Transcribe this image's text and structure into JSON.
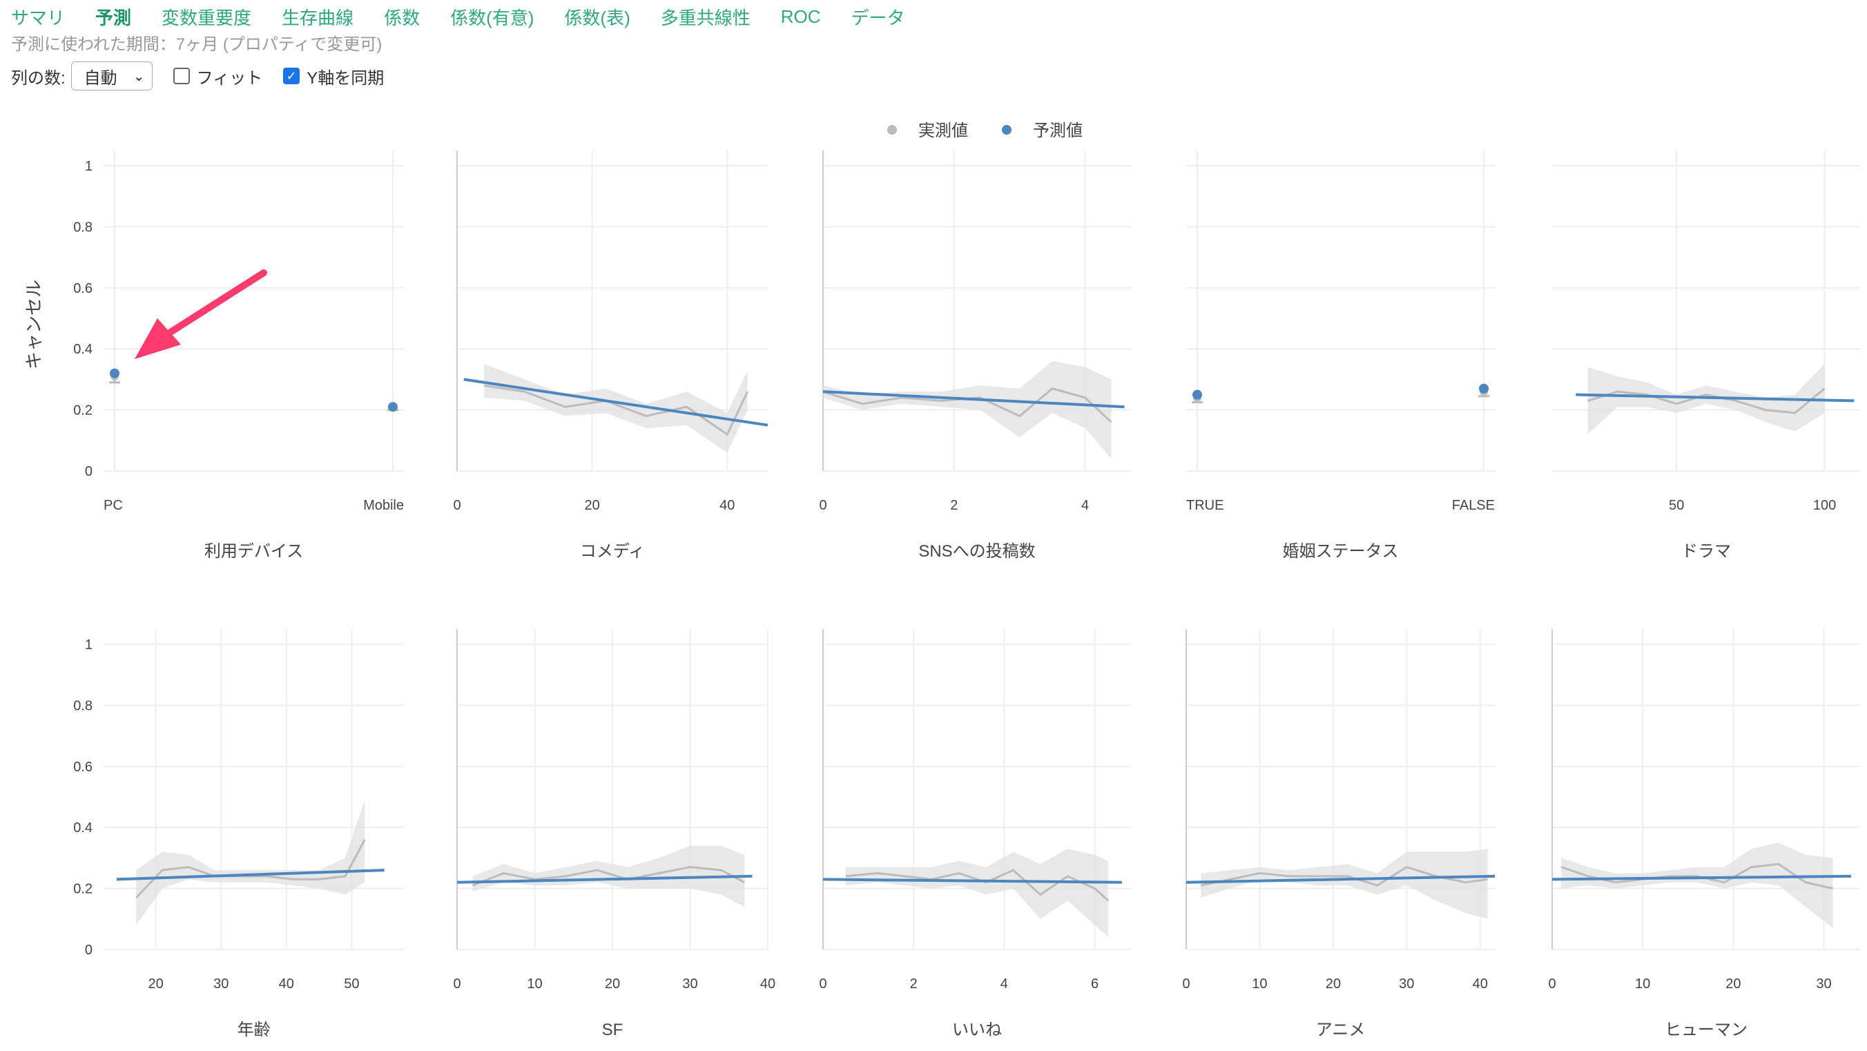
{
  "tabs": [
    {
      "label": "サマリ",
      "active": false
    },
    {
      "label": "予測",
      "active": true
    },
    {
      "label": "変数重要度",
      "active": false
    },
    {
      "label": "生存曲線",
      "active": false
    },
    {
      "label": "係数",
      "active": false
    },
    {
      "label": "係数(有意)",
      "active": false
    },
    {
      "label": "係数(表)",
      "active": false
    },
    {
      "label": "多重共線性",
      "active": false
    },
    {
      "label": "ROC",
      "active": false
    },
    {
      "label": "データ",
      "active": false
    }
  ],
  "period_text": "予測に使われた期間：7ヶ月 (プロパティで変更可)",
  "controls": {
    "columns_label": "列の数:",
    "columns_value": "自動",
    "fit_label": "フィット",
    "fit_checked": false,
    "sync_y_label": "Y軸を同期",
    "sync_y_checked": true
  },
  "colors": {
    "actual": "#bbbbbb",
    "predicted": "#4a86c0",
    "band": "#e0e0e0",
    "tab": "#2eaa7a",
    "annotation_arrow": "#ff3b6e"
  },
  "chart_data": {
    "type": "line",
    "ylabel": "キャンセル",
    "ylim": [
      0,
      1.05
    ],
    "yticks": [
      0,
      0.2,
      0.4,
      0.6,
      0.8,
      1
    ],
    "legend": {
      "placement": "top-center",
      "actual": "実測値",
      "predicted": "予測値"
    },
    "annotation": {
      "type": "arrow",
      "target": "利用デバイス PC"
    },
    "panels": [
      {
        "title": "利用デバイス",
        "kind": "categorical",
        "categories": [
          "PC",
          "Mobile"
        ],
        "predicted": [
          0.32,
          0.21
        ],
        "actual": [
          0.31,
          0.21
        ],
        "actual_err": [
          0.02,
          0.01
        ]
      },
      {
        "title": "コメディ",
        "kind": "numeric",
        "xlim": [
          0,
          46
        ],
        "xticks": [
          0,
          20,
          40
        ],
        "predicted_x": [
          1,
          46
        ],
        "predicted_y": [
          0.3,
          0.15
        ],
        "actual_x": [
          4,
          10,
          16,
          22,
          28,
          34,
          40,
          43
        ],
        "actual_y": [
          0.28,
          0.26,
          0.21,
          0.23,
          0.18,
          0.21,
          0.12,
          0.26
        ],
        "band_low": [
          0.24,
          0.23,
          0.18,
          0.19,
          0.14,
          0.15,
          0.06,
          0.2
        ],
        "band_high": [
          0.35,
          0.3,
          0.25,
          0.27,
          0.22,
          0.26,
          0.19,
          0.33
        ]
      },
      {
        "title": "SNSへの投稿数",
        "kind": "numeric",
        "xlim": [
          0,
          4.7
        ],
        "xticks": [
          0,
          2,
          4
        ],
        "predicted_x": [
          0,
          4.6
        ],
        "predicted_y": [
          0.26,
          0.21
        ],
        "actual_x": [
          0,
          0.6,
          1.2,
          1.8,
          2.4,
          3.0,
          3.5,
          4.0,
          4.4
        ],
        "actual_y": [
          0.26,
          0.22,
          0.24,
          0.23,
          0.24,
          0.18,
          0.27,
          0.24,
          0.16
        ],
        "band_low": [
          0.24,
          0.2,
          0.22,
          0.21,
          0.2,
          0.11,
          0.19,
          0.14,
          0.04
        ],
        "band_high": [
          0.28,
          0.25,
          0.26,
          0.26,
          0.28,
          0.27,
          0.36,
          0.34,
          0.3
        ]
      },
      {
        "title": "婚姻ステータス",
        "kind": "categorical",
        "categories": [
          "TRUE",
          "FALSE"
        ],
        "predicted": [
          0.25,
          0.27
        ],
        "actual": [
          0.24,
          0.26
        ],
        "actual_err": [
          0.015,
          0.015
        ]
      },
      {
        "title": "ドラマ",
        "kind": "numeric",
        "xlim": [
          8,
          112
        ],
        "xticks": [
          50,
          100
        ],
        "predicted_x": [
          16,
          110
        ],
        "predicted_y": [
          0.25,
          0.23
        ],
        "actual_x": [
          20,
          30,
          40,
          50,
          60,
          70,
          80,
          90,
          100
        ],
        "actual_y": [
          0.23,
          0.26,
          0.25,
          0.22,
          0.25,
          0.23,
          0.2,
          0.19,
          0.27
        ],
        "band_low": [
          0.12,
          0.21,
          0.21,
          0.19,
          0.22,
          0.2,
          0.16,
          0.13,
          0.19
        ],
        "band_high": [
          0.34,
          0.31,
          0.29,
          0.25,
          0.28,
          0.26,
          0.24,
          0.25,
          0.35
        ]
      },
      {
        "title": "年齢",
        "kind": "numeric",
        "xlim": [
          12,
          58
        ],
        "xticks": [
          20,
          30,
          40,
          50
        ],
        "predicted_x": [
          14,
          55
        ],
        "predicted_y": [
          0.23,
          0.26
        ],
        "actual_x": [
          17,
          21,
          25,
          29,
          33,
          37,
          41,
          45,
          49,
          52
        ],
        "actual_y": [
          0.17,
          0.26,
          0.27,
          0.24,
          0.24,
          0.24,
          0.23,
          0.23,
          0.24,
          0.36
        ],
        "band_low": [
          0.08,
          0.2,
          0.23,
          0.22,
          0.22,
          0.22,
          0.21,
          0.2,
          0.18,
          0.22
        ],
        "band_high": [
          0.26,
          0.32,
          0.31,
          0.26,
          0.26,
          0.26,
          0.26,
          0.26,
          0.3,
          0.49
        ]
      },
      {
        "title": "SF",
        "kind": "numeric",
        "xlim": [
          0,
          40
        ],
        "xticks": [
          0,
          10,
          20,
          30,
          40
        ],
        "predicted_x": [
          0,
          38
        ],
        "predicted_y": [
          0.22,
          0.24
        ],
        "actual_x": [
          2,
          6,
          10,
          14,
          18,
          22,
          26,
          30,
          34,
          37
        ],
        "actual_y": [
          0.21,
          0.25,
          0.23,
          0.24,
          0.26,
          0.23,
          0.25,
          0.27,
          0.26,
          0.22
        ],
        "band_low": [
          0.19,
          0.22,
          0.21,
          0.21,
          0.22,
          0.2,
          0.2,
          0.2,
          0.18,
          0.14
        ],
        "band_high": [
          0.24,
          0.28,
          0.25,
          0.27,
          0.29,
          0.27,
          0.3,
          0.34,
          0.34,
          0.31
        ]
      },
      {
        "title": "いいね",
        "kind": "numeric",
        "xlim": [
          0,
          6.8
        ],
        "xticks": [
          0,
          2,
          4,
          6
        ],
        "predicted_x": [
          0,
          6.6
        ],
        "predicted_y": [
          0.23,
          0.22
        ],
        "actual_x": [
          0.5,
          1.2,
          1.8,
          2.4,
          3.0,
          3.6,
          4.2,
          4.8,
          5.4,
          6.0,
          6.3
        ],
        "actual_y": [
          0.24,
          0.25,
          0.24,
          0.23,
          0.25,
          0.22,
          0.26,
          0.18,
          0.24,
          0.2,
          0.16
        ],
        "band_low": [
          0.21,
          0.22,
          0.21,
          0.2,
          0.21,
          0.18,
          0.2,
          0.1,
          0.16,
          0.08,
          0.04
        ],
        "band_high": [
          0.27,
          0.27,
          0.27,
          0.27,
          0.29,
          0.27,
          0.32,
          0.28,
          0.33,
          0.31,
          0.29
        ]
      },
      {
        "title": "アニメ",
        "kind": "numeric",
        "xlim": [
          0,
          42
        ],
        "xticks": [
          0,
          10,
          20,
          30,
          40
        ],
        "predicted_x": [
          0,
          42
        ],
        "predicted_y": [
          0.22,
          0.24
        ],
        "actual_x": [
          2,
          6,
          10,
          14,
          18,
          22,
          26,
          30,
          34,
          38,
          41
        ],
        "actual_y": [
          0.21,
          0.23,
          0.25,
          0.24,
          0.24,
          0.24,
          0.21,
          0.27,
          0.24,
          0.22,
          0.23
        ],
        "band_low": [
          0.17,
          0.2,
          0.23,
          0.22,
          0.21,
          0.21,
          0.18,
          0.21,
          0.16,
          0.12,
          0.1
        ],
        "band_high": [
          0.25,
          0.26,
          0.27,
          0.26,
          0.27,
          0.28,
          0.25,
          0.32,
          0.32,
          0.32,
          0.33
        ]
      },
      {
        "title": "ヒューマン",
        "kind": "numeric",
        "xlim": [
          0,
          34
        ],
        "xticks": [
          0,
          10,
          20,
          30
        ],
        "predicted_x": [
          0,
          33
        ],
        "predicted_y": [
          0.23,
          0.24
        ],
        "actual_x": [
          1,
          4,
          7,
          10,
          13,
          16,
          19,
          22,
          25,
          28,
          31
        ],
        "actual_y": [
          0.27,
          0.24,
          0.22,
          0.23,
          0.24,
          0.24,
          0.22,
          0.27,
          0.28,
          0.22,
          0.2
        ],
        "band_low": [
          0.2,
          0.21,
          0.2,
          0.21,
          0.22,
          0.22,
          0.2,
          0.22,
          0.21,
          0.14,
          0.07
        ],
        "band_high": [
          0.3,
          0.27,
          0.25,
          0.25,
          0.26,
          0.27,
          0.27,
          0.33,
          0.35,
          0.31,
          0.3
        ]
      }
    ]
  }
}
